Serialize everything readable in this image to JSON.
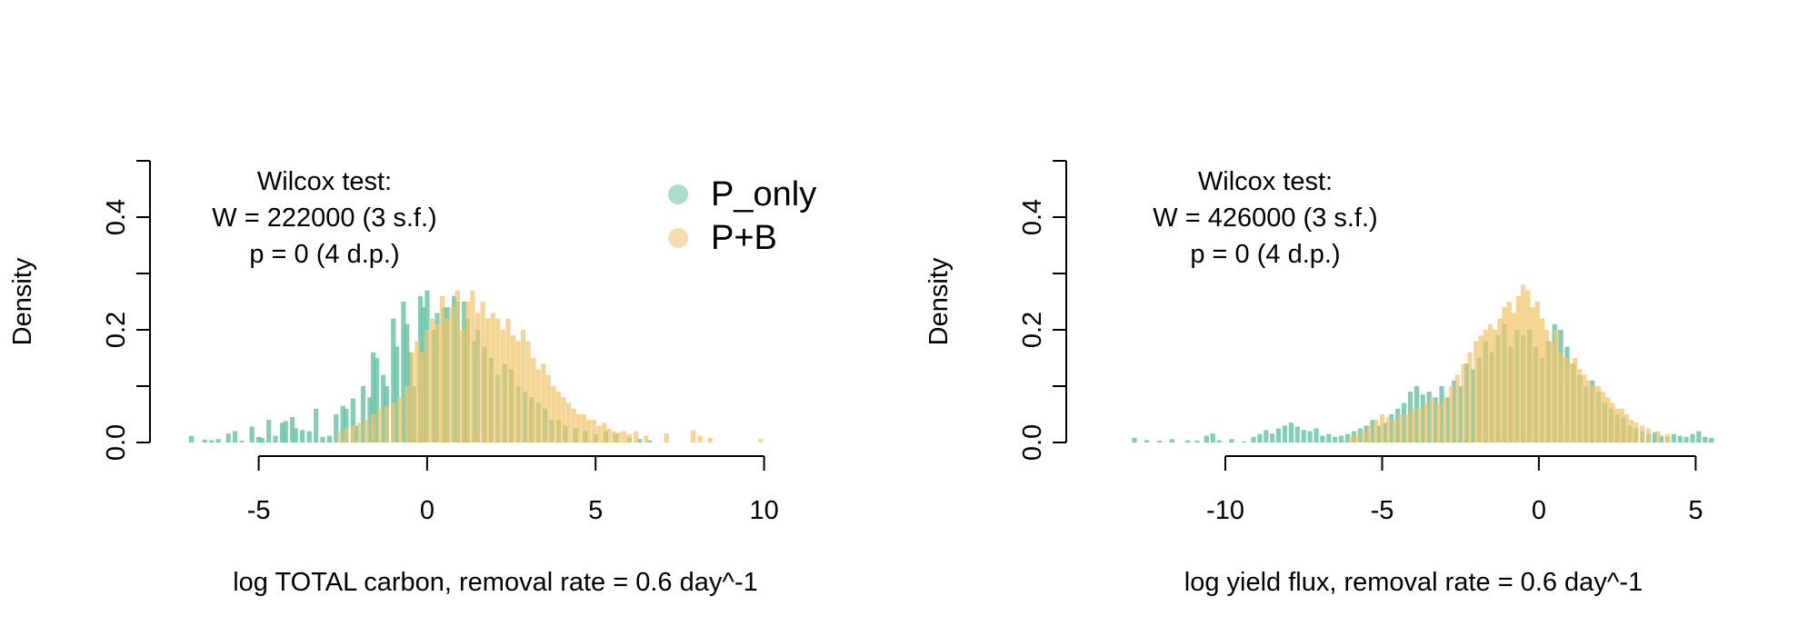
{
  "series_colors": {
    "P_only": "#66c2a5",
    "P+B": "#f2c36b"
  },
  "legend": {
    "items": [
      "P_only",
      "P+B"
    ],
    "placement": "top-right"
  },
  "chart_data": [
    {
      "type": "histogram",
      "title": "",
      "xlabel": "log TOTAL carbon, removal rate = 0.6 day^-1",
      "ylabel": "Density",
      "xlim": [
        -7.2,
        10.2
      ],
      "ylim": [
        0,
        0.5
      ],
      "x_ticks": [
        -5,
        0,
        5,
        10
      ],
      "y_ticks": [
        0.0,
        0.2,
        0.4
      ],
      "y_tick_labels": [
        "0.0",
        "0.2",
        "0.4"
      ],
      "grid": false,
      "annotation": [
        "Wilcox test:",
        "W = 222000 (3 s.f.)",
        "p = 0 (4 d.p.)"
      ],
      "series": [
        {
          "name": "P_only",
          "x": [
            -7.0,
            -6.6,
            -6.4,
            -6.2,
            -5.9,
            -5.7,
            -5.5,
            -5.2,
            -5.0,
            -4.9,
            -4.7,
            -4.5,
            -4.3,
            -4.2,
            -4.0,
            -3.9,
            -3.7,
            -3.5,
            -3.3,
            -3.1,
            -2.9,
            -2.7,
            -2.5,
            -2.4,
            -2.2,
            -2.1,
            -1.9,
            -1.7,
            -1.6,
            -1.5,
            -1.3,
            -1.2,
            -1.0,
            -0.9,
            -0.7,
            -0.6,
            -0.5,
            -0.4,
            -0.2,
            -0.1,
            0.0,
            0.2,
            0.3,
            0.5,
            0.6,
            0.8,
            0.9,
            1.1,
            1.2,
            1.4,
            1.5,
            1.7,
            1.9,
            2.1,
            2.3,
            2.5,
            2.7,
            2.9,
            3.1,
            3.3,
            3.5,
            3.7,
            3.9,
            4.1,
            4.4,
            4.7,
            5.0,
            5.3,
            5.6,
            6.0,
            6.3,
            6.6
          ],
          "density": [
            0.012,
            0.005,
            0.004,
            0.006,
            0.016,
            0.02,
            0.003,
            0.028,
            0.01,
            0.008,
            0.04,
            0.012,
            0.035,
            0.038,
            0.045,
            0.025,
            0.022,
            0.02,
            0.06,
            0.01,
            0.012,
            0.05,
            0.065,
            0.06,
            0.078,
            0.03,
            0.1,
            0.08,
            0.16,
            0.15,
            0.12,
            0.1,
            0.22,
            0.17,
            0.25,
            0.21,
            0.16,
            0.1,
            0.26,
            0.24,
            0.27,
            0.2,
            0.23,
            0.24,
            0.24,
            0.26,
            0.25,
            0.25,
            0.22,
            0.18,
            0.2,
            0.17,
            0.15,
            0.12,
            0.14,
            0.13,
            0.1,
            0.09,
            0.08,
            0.07,
            0.06,
            0.04,
            0.04,
            0.03,
            0.025,
            0.02,
            0.015,
            0.02,
            0.015,
            0.008,
            0.006,
            0.004
          ]
        },
        {
          "name": "P+B",
          "x": [
            -2.6,
            -2.4,
            -2.2,
            -2.0,
            -1.8,
            -1.6,
            -1.4,
            -1.2,
            -1.0,
            -0.8,
            -0.6,
            -0.45,
            -0.3,
            -0.15,
            0.0,
            0.15,
            0.3,
            0.45,
            0.6,
            0.75,
            0.9,
            1.05,
            1.2,
            1.35,
            1.5,
            1.65,
            1.8,
            1.95,
            2.1,
            2.25,
            2.4,
            2.55,
            2.7,
            2.85,
            3.0,
            3.15,
            3.3,
            3.45,
            3.6,
            3.75,
            3.9,
            4.05,
            4.2,
            4.35,
            4.5,
            4.65,
            4.8,
            4.95,
            5.1,
            5.25,
            5.4,
            5.55,
            5.7,
            5.85,
            6.0,
            6.2,
            6.5,
            7.1,
            7.9,
            8.1,
            8.4,
            9.9
          ],
          "density": [
            0.02,
            0.025,
            0.03,
            0.035,
            0.04,
            0.05,
            0.06,
            0.065,
            0.07,
            0.08,
            0.1,
            0.16,
            0.18,
            0.16,
            0.2,
            0.22,
            0.21,
            0.26,
            0.22,
            0.24,
            0.27,
            0.2,
            0.25,
            0.27,
            0.23,
            0.25,
            0.22,
            0.23,
            0.22,
            0.2,
            0.22,
            0.19,
            0.18,
            0.2,
            0.18,
            0.15,
            0.13,
            0.14,
            0.12,
            0.1,
            0.09,
            0.08,
            0.07,
            0.06,
            0.05,
            0.05,
            0.04,
            0.04,
            0.03,
            0.035,
            0.025,
            0.02,
            0.018,
            0.02,
            0.015,
            0.02,
            0.012,
            0.016,
            0.022,
            0.012,
            0.008,
            0.006
          ]
        }
      ]
    },
    {
      "type": "histogram",
      "title": "",
      "xlabel": "log yield flux, removal rate = 0.6 day^-1",
      "ylabel": "Density",
      "xlim": [
        -14.0,
        5.8
      ],
      "ylim": [
        0,
        0.5
      ],
      "x_ticks": [
        -10,
        -5,
        0,
        5
      ],
      "y_ticks": [
        0.0,
        0.2,
        0.4
      ],
      "y_tick_labels": [
        "0.0",
        "0.2",
        "0.4"
      ],
      "grid": false,
      "annotation": [
        "Wilcox test:",
        "W = 426000 (3 s.f.)",
        "p = 0 (4 d.p.)"
      ],
      "series": [
        {
          "name": "P_only",
          "x": [
            -12.9,
            -12.5,
            -12.1,
            -11.7,
            -11.2,
            -10.9,
            -10.6,
            -10.4,
            -10.2,
            -9.8,
            -9.4,
            -9.1,
            -8.9,
            -8.7,
            -8.5,
            -8.3,
            -8.1,
            -7.9,
            -7.7,
            -7.5,
            -7.3,
            -7.1,
            -6.9,
            -6.7,
            -6.5,
            -6.3,
            -6.1,
            -5.9,
            -5.7,
            -5.5,
            -5.3,
            -5.1,
            -4.9,
            -4.7,
            -4.5,
            -4.3,
            -4.1,
            -3.9,
            -3.7,
            -3.5,
            -3.3,
            -3.1,
            -2.9,
            -2.7,
            -2.5,
            -2.3,
            -2.1,
            -1.9,
            -1.7,
            -1.5,
            -1.3,
            -1.1,
            -0.9,
            -0.7,
            -0.5,
            -0.3,
            -0.1,
            0.1,
            0.3,
            0.5,
            0.7,
            0.9,
            1.1,
            1.3,
            1.5,
            1.7,
            1.9,
            2.1,
            2.3,
            2.5,
            2.7,
            2.9,
            3.1,
            3.3,
            3.5,
            3.7,
            3.9,
            4.1,
            4.3,
            4.5,
            4.7,
            4.9,
            5.1,
            5.3,
            5.5
          ],
          "density": [
            0.008,
            0.004,
            0.003,
            0.006,
            0.004,
            0.003,
            0.012,
            0.016,
            0.004,
            0.006,
            0.002,
            0.01,
            0.015,
            0.022,
            0.016,
            0.025,
            0.03,
            0.035,
            0.028,
            0.022,
            0.02,
            0.025,
            0.012,
            0.015,
            0.01,
            0.012,
            0.015,
            0.02,
            0.025,
            0.03,
            0.04,
            0.03,
            0.035,
            0.05,
            0.06,
            0.07,
            0.09,
            0.1,
            0.085,
            0.09,
            0.08,
            0.1,
            0.08,
            0.11,
            0.1,
            0.14,
            0.13,
            0.15,
            0.18,
            0.16,
            0.19,
            0.21,
            0.17,
            0.2,
            0.19,
            0.2,
            0.17,
            0.15,
            0.18,
            0.21,
            0.2,
            0.17,
            0.14,
            0.12,
            0.1,
            0.11,
            0.09,
            0.07,
            0.06,
            0.05,
            0.045,
            0.03,
            0.025,
            0.02,
            0.015,
            0.018,
            0.012,
            0.01,
            0.015,
            0.012,
            0.01,
            0.015,
            0.02,
            0.01,
            0.008
          ]
        },
        {
          "name": "P+B",
          "x": [
            -6.0,
            -5.8,
            -5.6,
            -5.4,
            -5.2,
            -5.0,
            -4.8,
            -4.6,
            -4.4,
            -4.2,
            -4.0,
            -3.8,
            -3.6,
            -3.4,
            -3.2,
            -3.0,
            -2.8,
            -2.6,
            -2.4,
            -2.2,
            -2.0,
            -1.85,
            -1.7,
            -1.55,
            -1.4,
            -1.25,
            -1.1,
            -0.95,
            -0.8,
            -0.65,
            -0.5,
            -0.35,
            -0.2,
            -0.05,
            0.1,
            0.25,
            0.4,
            0.55,
            0.7,
            0.85,
            1.0,
            1.15,
            1.3,
            1.45,
            1.6,
            1.75,
            1.9,
            2.05,
            2.2,
            2.35,
            2.5,
            2.65,
            2.8,
            2.95,
            3.1,
            3.3,
            3.5,
            3.8,
            4.1
          ],
          "density": [
            0.01,
            0.015,
            0.02,
            0.03,
            0.04,
            0.05,
            0.045,
            0.04,
            0.05,
            0.05,
            0.06,
            0.06,
            0.07,
            0.08,
            0.07,
            0.08,
            0.1,
            0.12,
            0.14,
            0.16,
            0.18,
            0.19,
            0.2,
            0.21,
            0.2,
            0.22,
            0.24,
            0.25,
            0.23,
            0.26,
            0.28,
            0.27,
            0.24,
            0.25,
            0.22,
            0.2,
            0.18,
            0.2,
            0.16,
            0.15,
            0.14,
            0.15,
            0.13,
            0.12,
            0.11,
            0.1,
            0.1,
            0.09,
            0.08,
            0.07,
            0.06,
            0.06,
            0.05,
            0.04,
            0.035,
            0.03,
            0.025,
            0.02,
            0.015
          ]
        }
      ]
    }
  ]
}
